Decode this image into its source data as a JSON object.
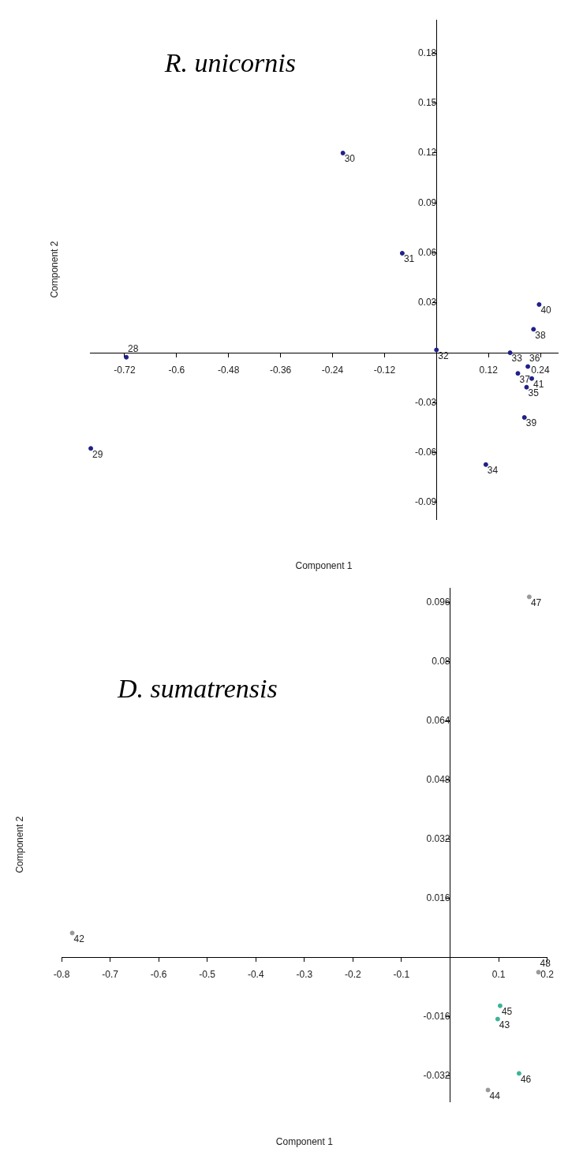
{
  "chart_data": [
    {
      "type": "scatter",
      "title": "R. unicornis",
      "xlabel": "Component 1",
      "ylabel": "Component 2",
      "xlim": [
        -0.8,
        0.28
      ],
      "ylim": [
        -0.1,
        0.2
      ],
      "xticks": [
        -0.72,
        -0.6,
        -0.48,
        -0.36,
        -0.24,
        -0.12,
        0.12,
        0.24
      ],
      "yticks": [
        -0.09,
        -0.06,
        -0.03,
        0.03,
        0.06,
        0.09,
        0.12,
        0.15,
        0.18
      ],
      "marker": "circle",
      "color": "#20208a",
      "x": [
        -0.716,
        -0.798,
        -0.216,
        -0.079,
        0,
        0.17,
        0.114,
        0.208,
        0.211,
        0.188,
        0.224,
        0.203,
        0.237,
        0.22
      ],
      "values": [
        -0.0027,
        -0.0575,
        0.12,
        0.0598,
        0.0017,
        0,
        -0.0672,
        -0.0207,
        -0.0083,
        -0.0124,
        0.0141,
        -0.0389,
        0.029,
        -0.0155
      ],
      "annotations": [
        {
          "text": "28",
          "x": -0.716,
          "y": -0.0027
        },
        {
          "text": "29",
          "x": -0.798,
          "y": -0.0575
        },
        {
          "text": "30",
          "x": -0.216,
          "y": 0.12
        },
        {
          "text": "31",
          "x": -0.079,
          "y": 0.0598
        },
        {
          "text": "32",
          "x": 0,
          "y": 0.0017
        },
        {
          "text": "33",
          "x": 0.17,
          "y": 0
        },
        {
          "text": "34",
          "x": 0.114,
          "y": -0.0672
        },
        {
          "text": "35",
          "x": 0.208,
          "y": -0.0207
        },
        {
          "text": "36",
          "x": 0.211,
          "y": -0.0083
        },
        {
          "text": "37",
          "x": 0.188,
          "y": -0.0124
        },
        {
          "text": "38",
          "x": 0.224,
          "y": 0.0141
        },
        {
          "text": "39",
          "x": 0.203,
          "y": -0.0389
        },
        {
          "text": "40",
          "x": 0.237,
          "y": 0.029
        },
        {
          "text": "41",
          "x": 0.22,
          "y": -0.0155
        }
      ]
    },
    {
      "type": "scatter",
      "title": "D. sumatrensis",
      "xlabel": "Component 1",
      "ylabel": "Component 2",
      "xlim": [
        -0.8,
        0.2
      ],
      "ylim": [
        -0.039,
        0.1
      ],
      "xticks": [
        -0.8,
        -0.7,
        -0.6,
        -0.5,
        -0.4,
        -0.3,
        -0.2,
        -0.1,
        0.1,
        0.2
      ],
      "yticks": [
        -0.032,
        -0.016,
        0.016,
        0.032,
        0.048,
        0.064,
        0.08,
        0.096
      ],
      "marker": "circle",
      "colors": [
        "#999999",
        "#3cb39a",
        "#999999",
        "#3cb39a",
        "#3cb39a",
        "#999999",
        "#999999"
      ],
      "x": [
        -0.778,
        0.098,
        0.078,
        0.103,
        0.142,
        0.163,
        0.182
      ],
      "values": [
        0.0066,
        -0.0167,
        -0.0359,
        -0.0131,
        -0.0314,
        0.0976,
        -0.004
      ],
      "annotations": [
        {
          "text": "42",
          "x": -0.778,
          "y": 0.0066
        },
        {
          "text": "43",
          "x": 0.098,
          "y": -0.0167
        },
        {
          "text": "44",
          "x": 0.078,
          "y": -0.0359
        },
        {
          "text": "45",
          "x": 0.103,
          "y": -0.0131
        },
        {
          "text": "46",
          "x": 0.142,
          "y": -0.0314
        },
        {
          "text": "47",
          "x": 0.163,
          "y": 0.0976
        },
        {
          "text": "48",
          "x": 0.182,
          "y": -0.004
        }
      ]
    }
  ]
}
